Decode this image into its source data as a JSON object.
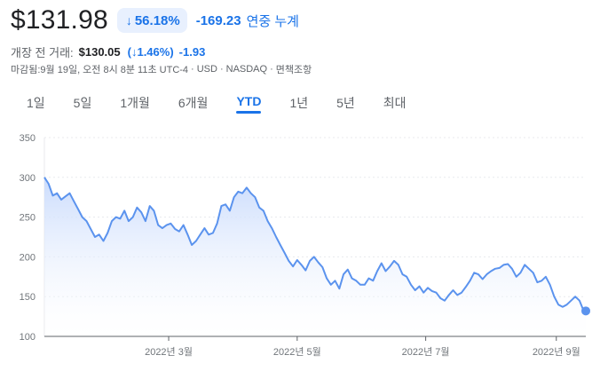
{
  "quote": {
    "price": "$131.98",
    "change_pill_arrow": "↓",
    "change_pct": "56.18%",
    "change_abs": "-169.23",
    "change_period": "연중 누계"
  },
  "premarket": {
    "label": "개장 전 거래:",
    "price": "$130.05",
    "change_pct": "(↓1.46%)",
    "change_abs": "-1.93"
  },
  "meta": {
    "close_info": "마감됨:9월 19일, 오전 8시 8분 11초 UTC-4",
    "currency": "USD",
    "exchange": "NASDAQ",
    "disclaimer": "면책조항",
    "separator": "·"
  },
  "range_tabs": [
    {
      "label": "1일",
      "active": false
    },
    {
      "label": "5일",
      "active": false
    },
    {
      "label": "1개월",
      "active": false
    },
    {
      "label": "6개월",
      "active": false
    },
    {
      "label": "YTD",
      "active": true
    },
    {
      "label": "1년",
      "active": false
    },
    {
      "label": "5년",
      "active": false
    },
    {
      "label": "최대",
      "active": false
    }
  ],
  "colors": {
    "line": "#5b93ee",
    "fill_top": "#c8dafc",
    "fill_bottom": "#ffffff",
    "grid": "#e8eaed",
    "axis": "#5f6368",
    "accent": "#1a73e8"
  },
  "chart_data": {
    "type": "area",
    "ylim": [
      100,
      350
    ],
    "yticks": [
      "350",
      "300",
      "250",
      "200",
      "150",
      "100"
    ],
    "ytick_values": [
      350,
      300,
      250,
      200,
      150,
      100
    ],
    "xticks": [
      {
        "label": "2022년 3월",
        "day": 59
      },
      {
        "label": "2022년 5월",
        "day": 120
      },
      {
        "label": "2022년 7월",
        "day": 181
      },
      {
        "label": "2022년 9월",
        "day": 243
      }
    ],
    "x_domain": [
      0,
      257
    ],
    "series": [
      {
        "values": [
          [
            0,
            300
          ],
          [
            2,
            292
          ],
          [
            4,
            277
          ],
          [
            6,
            280
          ],
          [
            8,
            272
          ],
          [
            10,
            276
          ],
          [
            12,
            280
          ],
          [
            14,
            270
          ],
          [
            16,
            260
          ],
          [
            18,
            250
          ],
          [
            20,
            245
          ],
          [
            22,
            235
          ],
          [
            24,
            225
          ],
          [
            26,
            228
          ],
          [
            28,
            220
          ],
          [
            30,
            230
          ],
          [
            32,
            245
          ],
          [
            34,
            250
          ],
          [
            36,
            248
          ],
          [
            38,
            258
          ],
          [
            40,
            245
          ],
          [
            42,
            250
          ],
          [
            44,
            262
          ],
          [
            46,
            256
          ],
          [
            48,
            245
          ],
          [
            50,
            264
          ],
          [
            52,
            258
          ],
          [
            54,
            240
          ],
          [
            56,
            236
          ],
          [
            58,
            240
          ],
          [
            60,
            242
          ],
          [
            62,
            235
          ],
          [
            64,
            232
          ],
          [
            66,
            240
          ],
          [
            68,
            228
          ],
          [
            70,
            215
          ],
          [
            72,
            220
          ],
          [
            74,
            228
          ],
          [
            76,
            236
          ],
          [
            78,
            228
          ],
          [
            80,
            230
          ],
          [
            82,
            242
          ],
          [
            84,
            264
          ],
          [
            86,
            266
          ],
          [
            88,
            258
          ],
          [
            90,
            275
          ],
          [
            92,
            282
          ],
          [
            94,
            280
          ],
          [
            96,
            287
          ],
          [
            98,
            280
          ],
          [
            100,
            275
          ],
          [
            102,
            262
          ],
          [
            104,
            258
          ],
          [
            106,
            245
          ],
          [
            108,
            236
          ],
          [
            110,
            225
          ],
          [
            112,
            215
          ],
          [
            114,
            205
          ],
          [
            116,
            195
          ],
          [
            118,
            188
          ],
          [
            120,
            196
          ],
          [
            122,
            190
          ],
          [
            124,
            183
          ],
          [
            126,
            195
          ],
          [
            128,
            200
          ],
          [
            130,
            193
          ],
          [
            132,
            187
          ],
          [
            134,
            173
          ],
          [
            136,
            165
          ],
          [
            138,
            170
          ],
          [
            140,
            160
          ],
          [
            142,
            178
          ],
          [
            144,
            184
          ],
          [
            146,
            173
          ],
          [
            148,
            170
          ],
          [
            150,
            165
          ],
          [
            152,
            165
          ],
          [
            154,
            173
          ],
          [
            156,
            170
          ],
          [
            158,
            182
          ],
          [
            160,
            192
          ],
          [
            162,
            182
          ],
          [
            164,
            188
          ],
          [
            166,
            195
          ],
          [
            168,
            190
          ],
          [
            170,
            178
          ],
          [
            172,
            175
          ],
          [
            174,
            165
          ],
          [
            176,
            158
          ],
          [
            178,
            163
          ],
          [
            180,
            155
          ],
          [
            182,
            161
          ],
          [
            184,
            157
          ],
          [
            186,
            155
          ],
          [
            188,
            148
          ],
          [
            190,
            145
          ],
          [
            192,
            152
          ],
          [
            194,
            158
          ],
          [
            196,
            152
          ],
          [
            198,
            155
          ],
          [
            200,
            162
          ],
          [
            202,
            170
          ],
          [
            204,
            180
          ],
          [
            206,
            178
          ],
          [
            208,
            172
          ],
          [
            210,
            178
          ],
          [
            212,
            182
          ],
          [
            214,
            185
          ],
          [
            216,
            186
          ],
          [
            218,
            190
          ],
          [
            220,
            191
          ],
          [
            222,
            185
          ],
          [
            224,
            175
          ],
          [
            226,
            180
          ],
          [
            228,
            190
          ],
          [
            230,
            185
          ],
          [
            232,
            180
          ],
          [
            234,
            168
          ],
          [
            236,
            170
          ],
          [
            238,
            175
          ],
          [
            240,
            165
          ],
          [
            242,
            150
          ],
          [
            244,
            140
          ],
          [
            246,
            137
          ],
          [
            248,
            140
          ],
          [
            250,
            145
          ],
          [
            252,
            150
          ],
          [
            254,
            145
          ],
          [
            256,
            132
          ],
          [
            257,
            131.98
          ]
        ]
      }
    ],
    "last_point": {
      "day": 257,
      "value": 131.98
    }
  }
}
